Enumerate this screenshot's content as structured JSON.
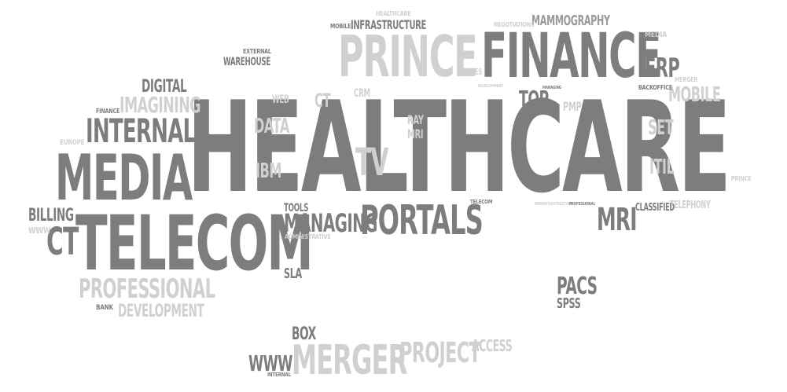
{
  "colors": {
    "dark": "#7d7d7d",
    "mid": "#9a9a9a",
    "light": "#d0d0d0",
    "lighter": "#e2e2e2"
  },
  "words": [
    {
      "text": "HEALTHCARE",
      "tone": "dark"
    },
    {
      "text": "TELECOM",
      "tone": "dark"
    },
    {
      "text": "MEDIA",
      "tone": "dark"
    },
    {
      "text": "FINANCE",
      "tone": "dark"
    },
    {
      "text": "PRINCE",
      "tone": "light"
    },
    {
      "text": "PORTALS",
      "tone": "dark"
    },
    {
      "text": "INTERNAL",
      "tone": "dark"
    },
    {
      "text": "MERGER",
      "tone": "light"
    },
    {
      "text": "PROJECT",
      "tone": "light"
    },
    {
      "text": "PROFESSIONAL",
      "tone": "light"
    },
    {
      "text": "MRI",
      "tone": "dark"
    },
    {
      "text": "CT",
      "tone": "dark"
    },
    {
      "text": "MANAGING",
      "tone": "dark"
    },
    {
      "text": "PACS",
      "tone": "dark"
    },
    {
      "text": "ERP",
      "tone": "dark"
    },
    {
      "text": "MAMMOGRAPHY",
      "tone": "mid"
    },
    {
      "text": "INFRASTRUCTURE",
      "tone": "dark"
    },
    {
      "text": "IMAGINING",
      "tone": "light"
    },
    {
      "text": "DIGITAL",
      "tone": "dark"
    },
    {
      "text": "MOBILE",
      "tone": "light"
    },
    {
      "text": "TOP",
      "tone": "dark"
    },
    {
      "text": "DATA",
      "tone": "light"
    },
    {
      "text": "TV",
      "tone": "light"
    },
    {
      "text": "IBM",
      "tone": "light"
    },
    {
      "text": "ITIL",
      "tone": "light"
    },
    {
      "text": "SET",
      "tone": "light"
    },
    {
      "text": "WWW",
      "tone": "dark"
    },
    {
      "text": "BOX",
      "tone": "dark"
    },
    {
      "text": "ACCESS",
      "tone": "light"
    },
    {
      "text": "BILLING",
      "tone": "dark"
    },
    {
      "text": "DEVELOPMENT",
      "tone": "light"
    },
    {
      "text": "WAREHOUSE",
      "tone": "dark"
    },
    {
      "text": "CLASSIFIED",
      "tone": "dark"
    },
    {
      "text": "TELEPHONY",
      "tone": "light"
    },
    {
      "text": "TOOLS",
      "tone": "dark"
    },
    {
      "text": "SLA",
      "tone": "dark"
    },
    {
      "text": "SPSS",
      "tone": "dark"
    },
    {
      "text": "CRM",
      "tone": "light"
    },
    {
      "text": "WEB",
      "tone": "light"
    },
    {
      "text": "CT",
      "tone": "light"
    },
    {
      "text": "RAY",
      "tone": "light"
    },
    {
      "text": "MRI",
      "tone": "light"
    },
    {
      "text": "PMP",
      "tone": "light"
    },
    {
      "text": "SALES",
      "tone": "light"
    },
    {
      "text": "MEDIA",
      "tone": "light"
    },
    {
      "text": "MERGER",
      "tone": "light"
    },
    {
      "text": "BACKOFFICE",
      "tone": "dark"
    },
    {
      "text": "NEGOTIATIONS",
      "tone": "light"
    },
    {
      "text": "HEALTHCARE",
      "tone": "light"
    },
    {
      "text": "MOBILE",
      "tone": "dark"
    },
    {
      "text": "EXTERNAL",
      "tone": "dark"
    },
    {
      "text": "FINANCE",
      "tone": "dark"
    },
    {
      "text": "EUROPE",
      "tone": "light"
    },
    {
      "text": "WWW",
      "tone": "light"
    },
    {
      "text": "BANK",
      "tone": "dark"
    },
    {
      "text": "INTERNAL",
      "tone": "dark"
    },
    {
      "text": "ADMINISTRATIVE",
      "tone": "light"
    },
    {
      "text": "TELECOM",
      "tone": "dark"
    },
    {
      "text": "WEBINFRASTRUCTURE",
      "tone": "light"
    },
    {
      "text": "PROFESSIONAL",
      "tone": "dark"
    },
    {
      "text": "DEVELOPMENT",
      "tone": "light"
    },
    {
      "text": "MANAGING",
      "tone": "dark"
    },
    {
      "text": "PRINCE",
      "tone": "light"
    }
  ]
}
